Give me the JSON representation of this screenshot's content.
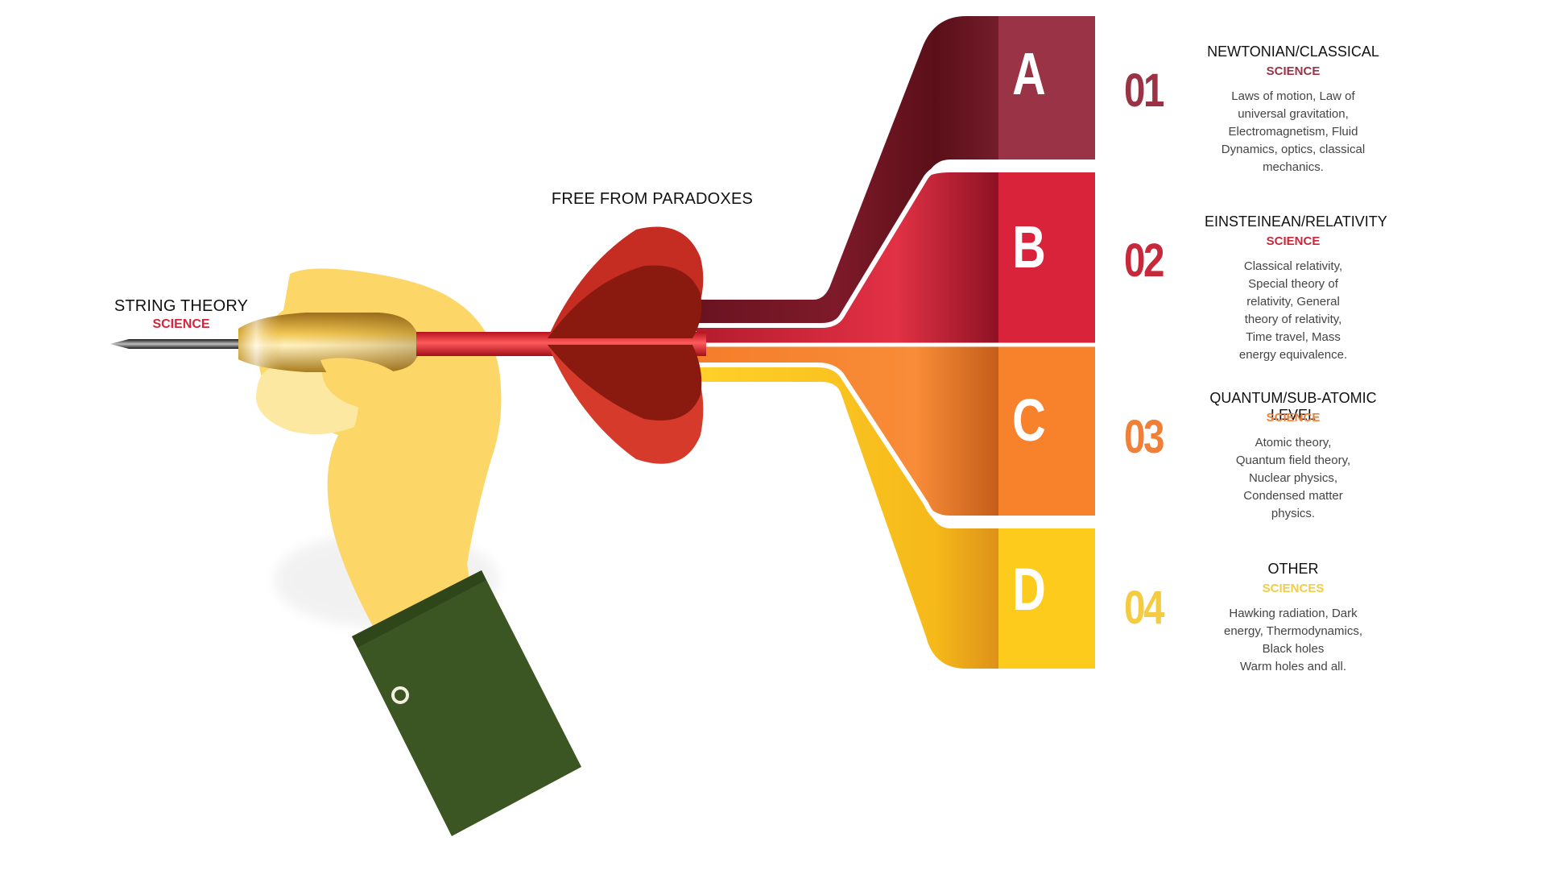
{
  "dart_tip_label": {
    "head": "STRING THEORY",
    "sub": "SCIENCE"
  },
  "flight_label": {
    "head": "FREE FROM PARADOXES"
  },
  "colors": {
    "maroon": "#9B3347",
    "red": "#D9233A",
    "orange": "#F7822B",
    "yellow": "#FCCB1B",
    "skin": "#FCD667",
    "sleeve": "#3B5623"
  },
  "bands": [
    {
      "letter": "A"
    },
    {
      "letter": "B"
    },
    {
      "letter": "C"
    },
    {
      "letter": "D"
    }
  ],
  "items": [
    {
      "number": "01",
      "title": "NEWTONIAN/CLASSICAL",
      "category": "SCIENCE",
      "description": "Laws of motion, Law of\nuniversal gravitation,\nElectromagnetism, Fluid\nDynamics, optics, classical\nmechanics.",
      "color": "#9B3347"
    },
    {
      "number": "02",
      "title": "EINSTEINEAN/RELATIVITY",
      "category": "SCIENCE",
      "description": "Classical relativity,\nSpecial theory of\nrelativity, General\ntheory of relativity,\nTime travel, Mass\nenergy equivalence.",
      "color": "#C7283A"
    },
    {
      "number": "03",
      "title": "QUANTUM/SUB-ATOMIC LEVEL",
      "category": "SCIENCE",
      "description": "Atomic theory,\nQuantum field theory,\nNuclear physics,\nCondensed matter\nphysics.",
      "color": "#F07F38"
    },
    {
      "number": "04",
      "title": "OTHER",
      "category": "SCIENCES",
      "description": "Hawking radiation, Dark\nenergy, Thermodynamics,\nBlack holes\nWarm holes and all.",
      "color": "#F5CB42"
    }
  ]
}
